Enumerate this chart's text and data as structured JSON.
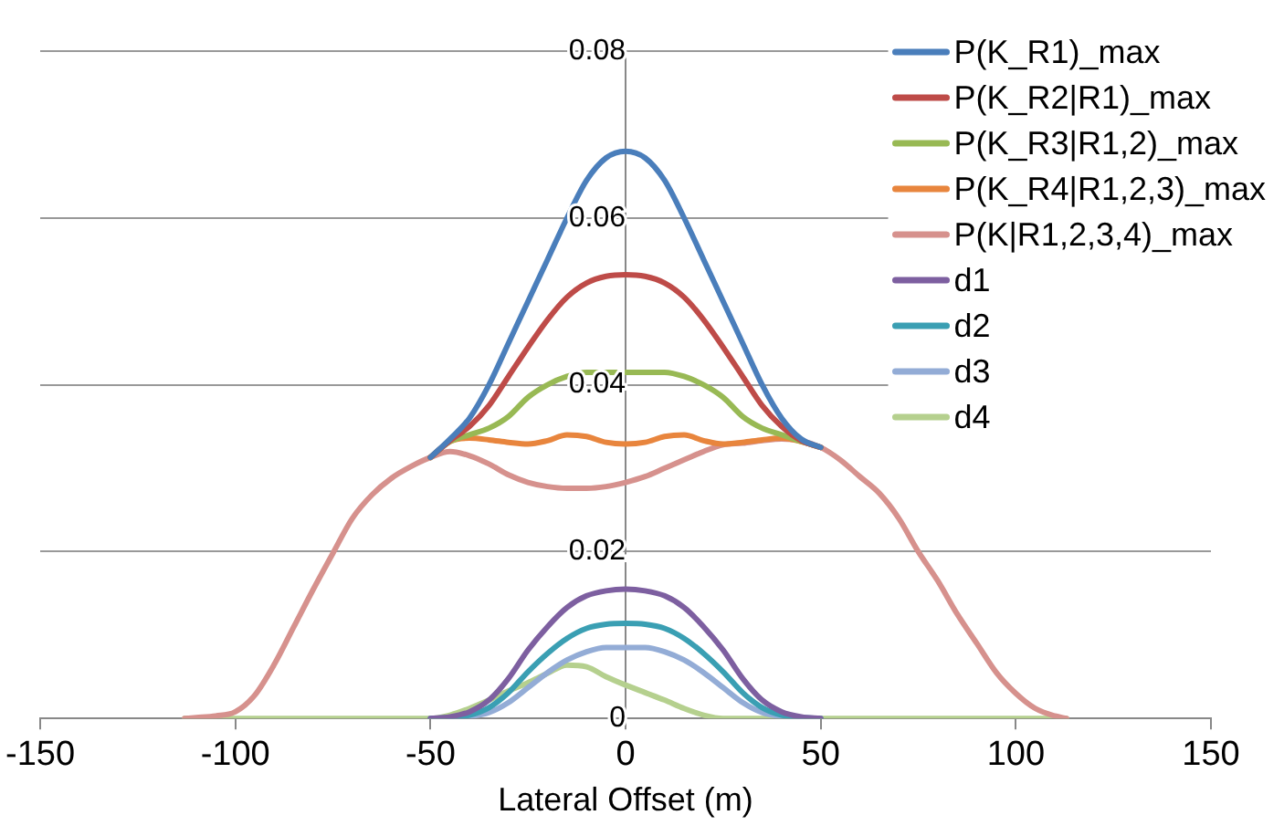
{
  "chart_data": {
    "type": "line",
    "xlabel": "Lateral Offset (m)",
    "x": [
      -113,
      -110,
      -105,
      -100,
      -95,
      -90,
      -85,
      -80,
      -75,
      -70,
      -65,
      -60,
      -55,
      -50,
      -45,
      -40,
      -35,
      -30,
      -25,
      -20,
      -15,
      -10,
      -5,
      0,
      5,
      10,
      15,
      20,
      25,
      30,
      35,
      40,
      45,
      50,
      55,
      60,
      65,
      70,
      75,
      80,
      85,
      90,
      95,
      100,
      105,
      110,
      113
    ],
    "xlim": [
      -150,
      150
    ],
    "xticks": [
      -150,
      -100,
      -50,
      0,
      50,
      100,
      150
    ],
    "ylim": [
      0,
      0.08
    ],
    "yticks": [
      0,
      0.02,
      0.04,
      0.06,
      0.08
    ],
    "grid": "y",
    "legend": "top right",
    "marker": "none",
    "line_style": "solid",
    "series": [
      {
        "name": "P(K_R1)_max",
        "color": "#4a7ebb",
        "values": [
          null,
          null,
          null,
          null,
          null,
          null,
          null,
          null,
          null,
          null,
          null,
          null,
          null,
          0.0313,
          0.0335,
          0.036,
          0.04,
          0.045,
          0.05,
          0.055,
          0.06,
          0.0645,
          0.0672,
          0.068,
          0.0672,
          0.0645,
          0.06,
          0.055,
          0.05,
          0.045,
          0.04,
          0.036,
          0.0335,
          0.0325,
          null,
          null,
          null,
          null,
          null,
          null,
          null,
          null,
          null,
          null,
          null,
          null,
          null
        ]
      },
      {
        "name": "P(K_R2|R1)_max",
        "color": "#be4b48",
        "values": [
          null,
          null,
          null,
          null,
          null,
          null,
          null,
          null,
          null,
          null,
          null,
          null,
          null,
          0.0313,
          0.0333,
          0.035,
          0.0375,
          0.041,
          0.0445,
          0.0478,
          0.0505,
          0.0522,
          0.053,
          0.0532,
          0.053,
          0.0522,
          0.0505,
          0.0478,
          0.0445,
          0.041,
          0.0375,
          0.035,
          0.0333,
          0.0325,
          null,
          null,
          null,
          null,
          null,
          null,
          null,
          null,
          null,
          null,
          null,
          null,
          null
        ]
      },
      {
        "name": "P(K_R3|R1,2)_max",
        "color": "#98b954",
        "values": [
          null,
          null,
          null,
          null,
          null,
          null,
          null,
          null,
          null,
          null,
          null,
          null,
          null,
          0.0313,
          0.0332,
          0.034,
          0.0348,
          0.0362,
          0.0385,
          0.04,
          0.041,
          0.0415,
          0.0415,
          0.0415,
          0.0415,
          0.0415,
          0.041,
          0.04,
          0.0385,
          0.0362,
          0.0348,
          0.034,
          0.0332,
          0.0325,
          null,
          null,
          null,
          null,
          null,
          null,
          null,
          null,
          null,
          null,
          null,
          null,
          null
        ]
      },
      {
        "name": "P(K_R4|R1,2,3)_max",
        "color": "#e8853d",
        "values": [
          null,
          null,
          null,
          null,
          null,
          null,
          null,
          null,
          null,
          null,
          null,
          null,
          null,
          0.0313,
          0.0332,
          0.0336,
          0.0334,
          0.0331,
          0.0329,
          0.0333,
          0.034,
          0.0338,
          0.0331,
          0.0329,
          0.0331,
          0.0338,
          0.034,
          0.0333,
          0.0329,
          0.0331,
          0.0334,
          0.0336,
          0.0332,
          0.0325,
          null,
          null,
          null,
          null,
          null,
          null,
          null,
          null,
          null,
          null,
          null,
          null,
          null
        ]
      },
      {
        "name": "P(K|R1,2,3,4)_max",
        "color": "#d6918d",
        "values": [
          0,
          0.0001,
          0.0003,
          0.0008,
          0.0028,
          0.0065,
          0.011,
          0.0155,
          0.0198,
          0.024,
          0.0268,
          0.0288,
          0.0302,
          0.0313,
          0.032,
          0.0315,
          0.0305,
          0.0292,
          0.0283,
          0.0278,
          0.0276,
          0.0276,
          0.0278,
          0.0283,
          0.029,
          0.03,
          0.031,
          0.032,
          0.0328,
          0.033,
          0.0333,
          0.0335,
          0.0333,
          0.0325,
          0.031,
          0.029,
          0.027,
          0.024,
          0.02,
          0.0165,
          0.0125,
          0.009,
          0.0055,
          0.003,
          0.0012,
          0.0003,
          0
        ]
      },
      {
        "name": "d1",
        "color": "#7d5fa0",
        "values": [
          null,
          null,
          null,
          null,
          null,
          null,
          null,
          null,
          null,
          null,
          null,
          null,
          null,
          0,
          0.0002,
          0.0008,
          0.0022,
          0.0048,
          0.0082,
          0.011,
          0.0133,
          0.0147,
          0.0153,
          0.0155,
          0.0153,
          0.0147,
          0.0133,
          0.011,
          0.0082,
          0.0048,
          0.0022,
          0.0008,
          0.0002,
          0,
          null,
          null,
          null,
          null,
          null,
          null,
          null,
          null,
          null,
          null,
          null,
          null,
          null
        ]
      },
      {
        "name": "d2",
        "color": "#3a9fb3",
        "values": [
          null,
          null,
          null,
          null,
          null,
          null,
          null,
          null,
          null,
          null,
          null,
          null,
          null,
          0,
          0.0001,
          0.0004,
          0.0013,
          0.0031,
          0.0056,
          0.0078,
          0.0096,
          0.0108,
          0.0113,
          0.0114,
          0.0113,
          0.0108,
          0.0096,
          0.0078,
          0.0056,
          0.0031,
          0.0013,
          0.0004,
          0.0001,
          0,
          null,
          null,
          null,
          null,
          null,
          null,
          null,
          null,
          null,
          null,
          null,
          null,
          null
        ]
      },
      {
        "name": "d3",
        "color": "#93acd6",
        "values": [
          null,
          null,
          null,
          null,
          null,
          null,
          null,
          null,
          null,
          null,
          null,
          null,
          null,
          null,
          0,
          0.0002,
          0.0007,
          0.0019,
          0.0037,
          0.0055,
          0.007,
          0.008,
          0.0085,
          0.0085,
          0.0085,
          0.008,
          0.007,
          0.0055,
          0.0037,
          0.0019,
          0.0007,
          0.0002,
          0,
          null,
          null,
          null,
          null,
          null,
          null,
          null,
          null,
          null,
          null,
          null,
          null,
          null,
          null
        ]
      },
      {
        "name": "d4",
        "color": "#b5d08e",
        "values": [
          0,
          0,
          0,
          0,
          0,
          0,
          0,
          0,
          0,
          0,
          0,
          0,
          0,
          0,
          0.0004,
          0.0012,
          0.0022,
          0.0033,
          0.0043,
          0.0054,
          0.0064,
          0.0062,
          0.005,
          0.004,
          0.0031,
          0.0022,
          0.0012,
          0.0004,
          0,
          0,
          0,
          0,
          0,
          0,
          0,
          0,
          0,
          0,
          0,
          0,
          0,
          0,
          0,
          0,
          0,
          0,
          0
        ]
      }
    ]
  }
}
